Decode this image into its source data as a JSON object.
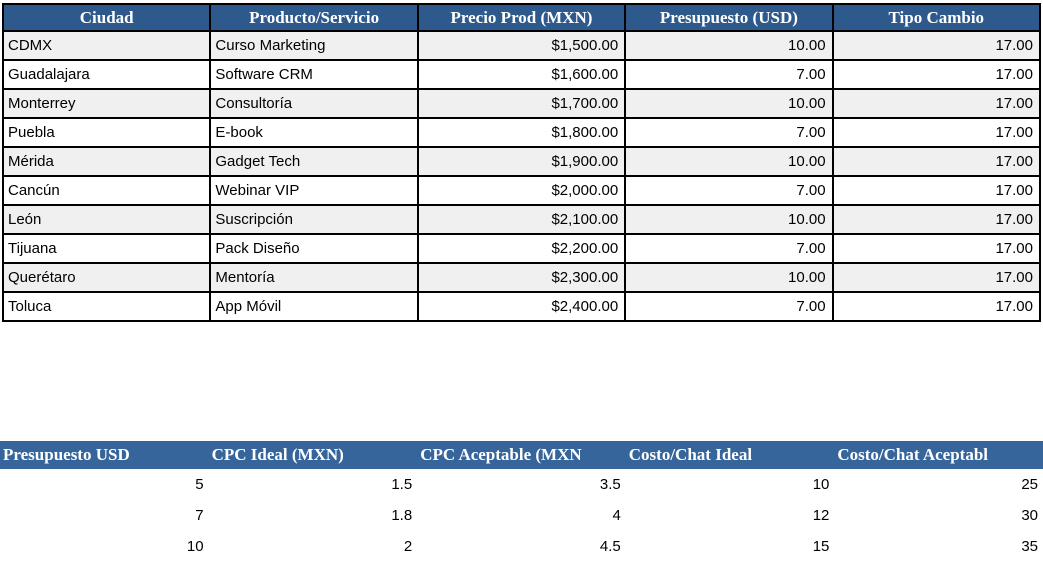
{
  "colors": {
    "top-header-bg": "#2E598C",
    "bottom-header-bg": "#36659B",
    "stripe": "#F0F0F0",
    "border": "#000000",
    "header-text": "#FFFFFF"
  },
  "top_table": {
    "name": "city-products-table",
    "headers": [
      "Ciudad",
      "Producto/Servicio",
      "Precio Prod (MXN)",
      "Presupuesto (USD)",
      "Tipo Cambio"
    ],
    "rows": [
      [
        "CDMX",
        "Curso Marketing",
        "$1,500.00",
        "10.00",
        "17.00"
      ],
      [
        "Guadalajara",
        "Software CRM",
        "$1,600.00",
        "7.00",
        "17.00"
      ],
      [
        "Monterrey",
        "Consultoría",
        "$1,700.00",
        "10.00",
        "17.00"
      ],
      [
        "Puebla",
        "E-book",
        "$1,800.00",
        "7.00",
        "17.00"
      ],
      [
        "Mérida",
        "Gadget Tech",
        "$1,900.00",
        "10.00",
        "17.00"
      ],
      [
        "Cancún",
        "Webinar VIP",
        "$2,000.00",
        "7.00",
        "17.00"
      ],
      [
        "León",
        "Suscripción",
        "$2,100.00",
        "10.00",
        "17.00"
      ],
      [
        "Tijuana",
        "Pack Diseño",
        "$2,200.00",
        "7.00",
        "17.00"
      ],
      [
        "Querétaro",
        "Mentoría",
        "$2,300.00",
        "10.00",
        "17.00"
      ],
      [
        "Toluca",
        "App Móvil",
        "$2,400.00",
        "7.00",
        "17.00"
      ]
    ]
  },
  "bottom_table": {
    "name": "cpc-reference-table",
    "headers": [
      "Presupuesto USD",
      "CPC Ideal (MXN)",
      "CPC Aceptable (MXN",
      "Costo/Chat Ideal",
      "Costo/Chat Aceptabl"
    ],
    "rows": [
      [
        "5",
        "1.5",
        "3.5",
        "10",
        "25"
      ],
      [
        "7",
        "1.8",
        "4",
        "12",
        "30"
      ],
      [
        "10",
        "2",
        "4.5",
        "15",
        "35"
      ]
    ]
  }
}
